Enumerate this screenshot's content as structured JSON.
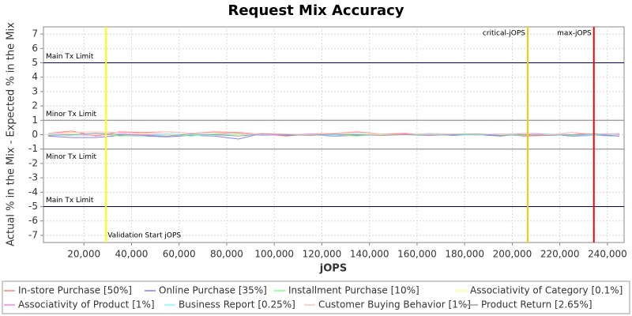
{
  "chart_data": {
    "type": "line",
    "title": "Request Mix Accuracy",
    "x_label": "jOPS",
    "y_label": "Actual % in the Mix - Expected % in the Mix",
    "xlim": [
      3000,
      247000
    ],
    "ylim": [
      -7.5,
      7.5
    ],
    "xticks": [
      {
        "value": 20000,
        "label": "20,000"
      },
      {
        "value": 40000,
        "label": "40,000"
      },
      {
        "value": 60000,
        "label": "60,000"
      },
      {
        "value": 80000,
        "label": "80,000"
      },
      {
        "value": 100000,
        "label": "100,000"
      },
      {
        "value": 120000,
        "label": "120,000"
      },
      {
        "value": 140000,
        "label": "140,000"
      },
      {
        "value": 160000,
        "label": "160,000"
      },
      {
        "value": 180000,
        "label": "180,000"
      },
      {
        "value": 200000,
        "label": "200,000"
      },
      {
        "value": 220000,
        "label": "220,000"
      },
      {
        "value": 240000,
        "label": "240,000"
      }
    ],
    "yticks": [
      -7,
      -6,
      -5,
      -4,
      -3,
      -2,
      -1,
      0,
      1,
      2,
      3,
      4,
      5,
      6,
      7
    ],
    "grid": true,
    "legend": "bottom",
    "hlines": [
      {
        "label": "Main Tx Limit",
        "value": 5,
        "color": "#000066"
      },
      {
        "label": "Minor Tx Limit",
        "value": 1,
        "color": "#808080"
      },
      {
        "label": "Minor Tx Limit",
        "value": -1,
        "color": "#808080"
      },
      {
        "label": "Main Tx Limit",
        "value": -5,
        "color": "#000066"
      }
    ],
    "vlines": [
      {
        "label": "Validation Start jOPS",
        "value": 29300,
        "color": "#ffff00"
      },
      {
        "label": "critical-jOPS",
        "value": 206500,
        "color": "#ffc800"
      },
      {
        "label": "max-jOPS",
        "value": 234300,
        "color": "#ff0000"
      }
    ],
    "x": [
      5000,
      15000,
      25000,
      35000,
      45000,
      55000,
      65000,
      75000,
      85000,
      95000,
      105000,
      115000,
      125000,
      135000,
      145000,
      155000,
      165000,
      175000,
      185000,
      195000,
      205000,
      215000,
      225000,
      235000,
      245000
    ],
    "series": [
      {
        "name": "In-store Purchase [50%]",
        "color": "#ff8080",
        "values": [
          0.1,
          0.25,
          -0.1,
          0.2,
          0.15,
          0.2,
          0.1,
          0.2,
          0.15,
          0.05,
          -0.1,
          0.05,
          0.1,
          0.2,
          0.05,
          0.1,
          -0.05,
          0.05,
          0.0,
          0.05,
          -0.1,
          -0.05,
          0.15,
          -0.05,
          0.1
        ]
      },
      {
        "name": "Online Purchase [35%]",
        "color": "#8080ff",
        "values": [
          -0.1,
          -0.2,
          -0.2,
          -0.05,
          -0.1,
          -0.15,
          -0.05,
          -0.1,
          -0.3,
          0.1,
          -0.05,
          0.0,
          -0.1,
          -0.05,
          0.05,
          0.0,
          0.05,
          -0.05,
          0.0,
          -0.1,
          0.1,
          0.05,
          -0.1,
          -0.05,
          -0.1
        ]
      },
      {
        "name": "Installment Purchase [10%]",
        "color": "#80ff80",
        "values": [
          0.0,
          -0.05,
          0.1,
          -0.1,
          -0.05,
          0.05,
          -0.1,
          0.05,
          0.1,
          -0.05,
          0.05,
          -0.05,
          0.0,
          -0.1,
          0.05,
          0.0,
          -0.05,
          0.05,
          0.05,
          0.0,
          -0.05,
          0.05,
          -0.05,
          0.05,
          0.0
        ]
      },
      {
        "name": "Associativity of Category [0.1%]",
        "color": "#ffff80",
        "values": [
          0,
          0.05,
          0,
          0,
          0.05,
          0,
          0,
          -0.05,
          0,
          0.05,
          0,
          0,
          0,
          0.05,
          0,
          0,
          0,
          0,
          0.05,
          0,
          0,
          0,
          0,
          0,
          0
        ]
      },
      {
        "name": "Associativity of Product [1%]",
        "color": "#ff80ff",
        "values": [
          0.05,
          0,
          -0.05,
          0.05,
          0,
          0.05,
          0,
          0,
          0.05,
          -0.05,
          0,
          0.05,
          0,
          0,
          -0.05,
          0.05,
          0,
          0,
          0,
          0.05,
          0,
          -0.05,
          0,
          0.05,
          0
        ]
      },
      {
        "name": "Business Report [0.25%]",
        "color": "#80ffff",
        "values": [
          0.05,
          -0.05,
          0.1,
          0,
          -0.1,
          0.05,
          0,
          -0.05,
          0.05,
          0,
          0.05,
          -0.05,
          0,
          0.05,
          -0.05,
          0,
          0.05,
          0,
          -0.05,
          0.05,
          0,
          0.05,
          0,
          -0.05,
          0.05
        ]
      },
      {
        "name": "Customer Buying Behavior [1%]",
        "color": "#ffc0c0",
        "values": [
          0.1,
          0.15,
          0.2,
          0.15,
          0.1,
          0.2,
          0.1,
          0.15,
          0.05,
          0.1,
          0.05,
          0,
          0.1,
          0.15,
          0.05,
          0,
          0.1,
          0.05,
          0,
          0.05,
          0.1,
          0,
          0.15,
          0.05,
          0.1
        ]
      },
      {
        "name": "Product Return [2.65%]",
        "color": "#a0a0a0",
        "values": [
          -0.05,
          0,
          0.1,
          0,
          -0.05,
          -0.1,
          0.05,
          0,
          -0.1,
          0.05,
          0,
          -0.05,
          0.05,
          0,
          -0.05,
          0,
          -0.05,
          0,
          0.05,
          -0.05,
          0,
          -0.05,
          0,
          0.05,
          -0.1
        ]
      }
    ]
  }
}
